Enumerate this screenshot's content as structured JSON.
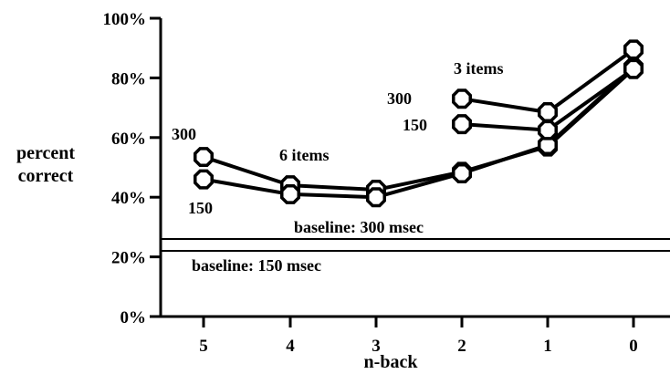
{
  "chart_data": {
    "type": "line",
    "title": "",
    "xlabel": "n-back",
    "ylabel_lines": [
      "percent",
      "correct"
    ],
    "x_ticks": [
      5,
      4,
      3,
      2,
      1,
      0
    ],
    "x_range": [
      5,
      0
    ],
    "y_ticks": [
      "0%",
      "20%",
      "40%",
      "60%",
      "80%",
      "100%"
    ],
    "y_tick_values": [
      0,
      20,
      40,
      60,
      80,
      100
    ],
    "ylim": [
      0,
      100
    ],
    "grid": false,
    "series": [
      {
        "x": [
          5,
          4,
          3,
          2,
          1,
          0
        ],
        "values": [
          53.5,
          44,
          42.5,
          48.5,
          57,
          83
        ]
      },
      {
        "x": [
          5,
          4,
          3,
          2,
          1,
          0
        ],
        "values": [
          46,
          41,
          40,
          48,
          57.5,
          83.5
        ]
      },
      {
        "x": [
          2,
          1,
          0
        ],
        "values": [
          73,
          68.5,
          89.5
        ]
      },
      {
        "x": [
          2,
          1,
          0
        ],
        "values": [
          64.5,
          62.5,
          83
        ]
      }
    ],
    "baselines": [
      {
        "value": 26,
        "label": "baseline: 300 msec"
      },
      {
        "value": 22,
        "label": "baseline: 150 msec"
      }
    ],
    "annotations": [
      {
        "text": "6 items"
      },
      {
        "text": "300"
      },
      {
        "text": "150"
      },
      {
        "text": "3 items"
      },
      {
        "text": "300"
      },
      {
        "text": "150"
      }
    ]
  }
}
